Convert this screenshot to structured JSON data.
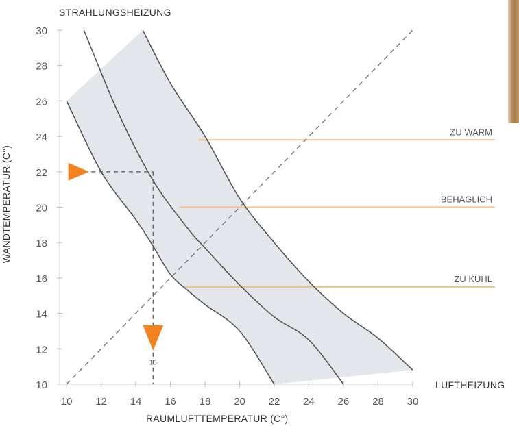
{
  "chart_data": {
    "type": "line",
    "title": "STRAHLUNGSHEIZUNG",
    "xlabel": "RAUMLUFTTEMPERATUR (C°)",
    "ylabel": "WANDTEMPERATUR (C°)",
    "corner_label": "LUFTHEIZUNG",
    "xlim": [
      9.6,
      30
    ],
    "ylim": [
      10,
      30
    ],
    "xticks": [
      10,
      12,
      14,
      16,
      18,
      20,
      22,
      24,
      26,
      28,
      30
    ],
    "yticks": [
      10,
      12,
      14,
      16,
      18,
      20,
      22,
      24,
      26,
      28,
      30
    ],
    "band_fill": "#e3e6eb",
    "curve_color": "#555555",
    "accent_color": "#f58220",
    "level_color": "#f5c08a",
    "curves": [
      {
        "points": [
          [
            10,
            26
          ],
          [
            12,
            22
          ],
          [
            14,
            19.3
          ],
          [
            15,
            17.8
          ],
          [
            16,
            16.2
          ],
          [
            17,
            15.3
          ],
          [
            18,
            14.5
          ],
          [
            20,
            13
          ],
          [
            22,
            10
          ]
        ]
      },
      {
        "points": [
          [
            11,
            30
          ],
          [
            13,
            25.3
          ],
          [
            15,
            21.5
          ],
          [
            17,
            18.8
          ],
          [
            18,
            17.7
          ],
          [
            20,
            15.6
          ],
          [
            22,
            13.8
          ],
          [
            24,
            12.5
          ],
          [
            26,
            10
          ]
        ]
      },
      {
        "points": [
          [
            14.4,
            30
          ],
          [
            16,
            27
          ],
          [
            18,
            24
          ],
          [
            20,
            20.5
          ],
          [
            22,
            18
          ],
          [
            24,
            15.8
          ],
          [
            26,
            14
          ],
          [
            28,
            12.6
          ],
          [
            30,
            10.8
          ]
        ]
      }
    ],
    "diagonal": [
      [
        10,
        10
      ],
      [
        30,
        30
      ]
    ],
    "levels": [
      {
        "label": "ZU WARM",
        "y": 23.8,
        "x_start": 17.6
      },
      {
        "label": "BEHAGLICH",
        "y": 20,
        "x_start": 16.5
      },
      {
        "label": "ZU KÜHL",
        "y": 15.5,
        "x_start": 16.8
      }
    ],
    "example": {
      "wall_temperature": 22,
      "air_temperature": 15,
      "marker_label": "15"
    }
  }
}
